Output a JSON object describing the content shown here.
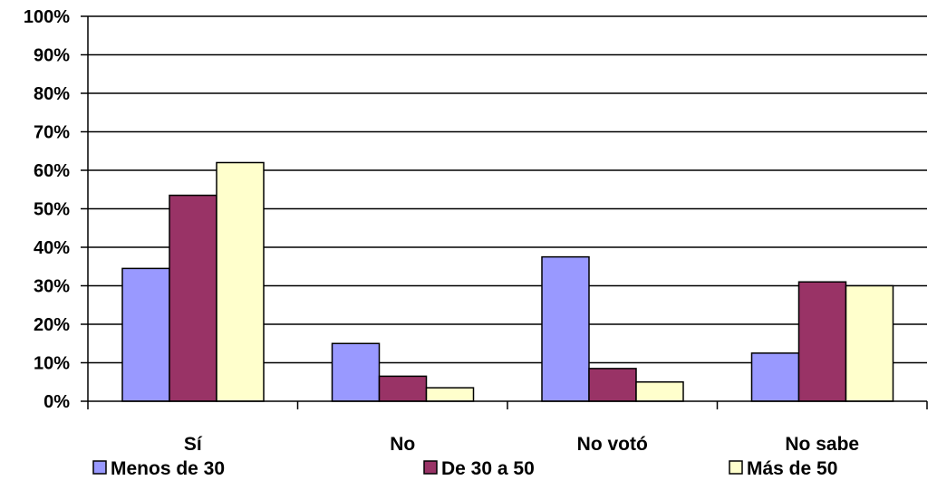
{
  "chart_data": {
    "type": "bar",
    "categories": [
      "Sí",
      "No",
      "No votó",
      "No sabe"
    ],
    "series": [
      {
        "name": "Menos de 30",
        "color": "#9999ff",
        "values": [
          34.5,
          15,
          37.5,
          12.5
        ]
      },
      {
        "name": "De 30 a 50",
        "color": "#993366",
        "values": [
          53.5,
          6.5,
          8.5,
          31
        ]
      },
      {
        "name": "Más de 50",
        "color": "#ffffcc",
        "values": [
          62,
          3.5,
          5,
          30
        ]
      }
    ],
    "ylim": [
      0,
      100
    ],
    "yticks": [
      0,
      10,
      20,
      30,
      40,
      50,
      60,
      70,
      80,
      90,
      100
    ],
    "ytick_labels": [
      "0%",
      "10%",
      "20%",
      "30%",
      "40%",
      "50%",
      "60%",
      "70%",
      "80%",
      "90%",
      "100%"
    ],
    "grid": true,
    "legend_position": "bottom",
    "title": "",
    "xlabel": "",
    "ylabel": ""
  }
}
